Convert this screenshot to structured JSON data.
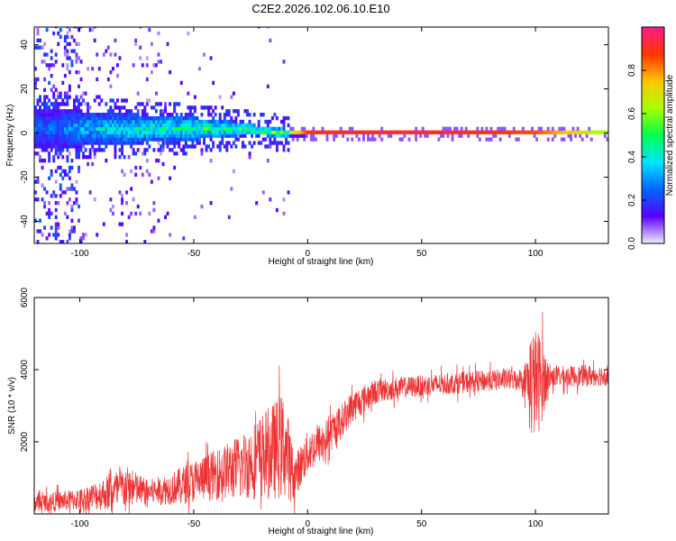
{
  "figure_title": "C2E2.2026.102.06.10.E10",
  "chart_data": [
    {
      "type": "heatmap",
      "title": "C2E2.2026.102.06.10.E10",
      "xlabel": "Height of straight line (km)",
      "ylabel": "Frequency (Hz)",
      "xlim": [
        -120,
        132
      ],
      "ylim": [
        -50,
        48
      ],
      "x_ticks": [
        -100,
        -50,
        0,
        50,
        100
      ],
      "x_tick_labels": [
        "-100",
        "-50",
        "0",
        "50",
        "100"
      ],
      "y_ticks": [
        -40,
        -20,
        0,
        20,
        40
      ],
      "y_tick_labels": [
        "-40",
        "-20",
        "0",
        "20",
        "40"
      ],
      "colorbar": {
        "label": "Normalized spectral amplitude",
        "range": [
          0.0,
          1.0
        ],
        "ticks": [
          0.0,
          0.2,
          0.4,
          0.6,
          0.8
        ],
        "tick_labels": [
          "0.0",
          "0.2",
          "0.4",
          "0.6",
          "0.8"
        ],
        "colors": [
          "#f4ecfb",
          "#5a00ff",
          "#0066ff",
          "#00e5ff",
          "#00ff4c",
          "#aaff00",
          "#ffc400",
          "#ff3300",
          "#ff1a8c"
        ]
      },
      "band_profile": [
        {
          "x": -110,
          "center": 2,
          "halfwidth": 9,
          "peak": 0.25
        },
        {
          "x": -100,
          "center": 2,
          "halfwidth": 8,
          "peak": 0.32
        },
        {
          "x": -90,
          "center": 2,
          "halfwidth": 7,
          "peak": 0.36
        },
        {
          "x": -80,
          "center": 2,
          "halfwidth": 7,
          "peak": 0.38
        },
        {
          "x": -70,
          "center": 2,
          "halfwidth": 6,
          "peak": 0.4
        },
        {
          "x": -60,
          "center": 2,
          "halfwidth": 6,
          "peak": 0.42
        },
        {
          "x": -50,
          "center": 2,
          "halfwidth": 5,
          "peak": 0.44
        },
        {
          "x": -40,
          "center": 2,
          "halfwidth": 4,
          "peak": 0.46
        },
        {
          "x": -30,
          "center": 2,
          "halfwidth": 3,
          "peak": 0.48
        },
        {
          "x": -20,
          "center": 1,
          "halfwidth": 2,
          "peak": 0.5
        },
        {
          "x": -10,
          "center": 0,
          "halfwidth": 2,
          "peak": 0.55
        },
        {
          "x": 0,
          "center": 0,
          "halfwidth": 1,
          "peak": 0.9
        },
        {
          "x": 50,
          "center": 0,
          "halfwidth": 1,
          "peak": 0.92
        },
        {
          "x": 100,
          "center": 0,
          "halfwidth": 1,
          "peak": 0.85
        },
        {
          "x": 132,
          "center": 0,
          "halfwidth": 1,
          "peak": 0.6
        }
      ]
    },
    {
      "type": "line",
      "title": "",
      "xlabel": "Height of straight line (km)",
      "ylabel": "SNR (10 * v/v)",
      "xlim": [
        -120,
        132
      ],
      "ylim": [
        0,
        6000
      ],
      "x_ticks": [
        -100,
        -50,
        0,
        50,
        100
      ],
      "x_tick_labels": [
        "-100",
        "-50",
        "0",
        "50",
        "100"
      ],
      "y_ticks": [
        2000,
        4000,
        6000
      ],
      "y_tick_labels": [
        "2000",
        "4000",
        "6000"
      ],
      "series": [
        {
          "name": "SNR",
          "color": "#ee3333",
          "envelope": [
            {
              "x": -120,
              "mean": 300,
              "spread": 250
            },
            {
              "x": -100,
              "mean": 400,
              "spread": 300
            },
            {
              "x": -90,
              "mean": 550,
              "spread": 450
            },
            {
              "x": -80,
              "mean": 750,
              "spread": 600
            },
            {
              "x": -70,
              "mean": 600,
              "spread": 350
            },
            {
              "x": -60,
              "mean": 700,
              "spread": 450
            },
            {
              "x": -50,
              "mean": 900,
              "spread": 600
            },
            {
              "x": -40,
              "mean": 1100,
              "spread": 700
            },
            {
              "x": -30,
              "mean": 1300,
              "spread": 900
            },
            {
              "x": -20,
              "mean": 1600,
              "spread": 1200
            },
            {
              "x": -10,
              "mean": 1900,
              "spread": 1500
            },
            {
              "x": -6,
              "mean": 1000,
              "spread": 600
            },
            {
              "x": 0,
              "mean": 1700,
              "spread": 600
            },
            {
              "x": 10,
              "mean": 2200,
              "spread": 500
            },
            {
              "x": 20,
              "mean": 3000,
              "spread": 450
            },
            {
              "x": 30,
              "mean": 3400,
              "spread": 350
            },
            {
              "x": 40,
              "mean": 3500,
              "spread": 300
            },
            {
              "x": 60,
              "mean": 3600,
              "spread": 300
            },
            {
              "x": 80,
              "mean": 3700,
              "spread": 300
            },
            {
              "x": 95,
              "mean": 3750,
              "spread": 300
            },
            {
              "x": 98,
              "mean": 3600,
              "spread": 1600
            },
            {
              "x": 102,
              "mean": 3700,
              "spread": 1400
            },
            {
              "x": 106,
              "mean": 3800,
              "spread": 300
            },
            {
              "x": 132,
              "mean": 3850,
              "spread": 300
            }
          ]
        }
      ]
    }
  ]
}
